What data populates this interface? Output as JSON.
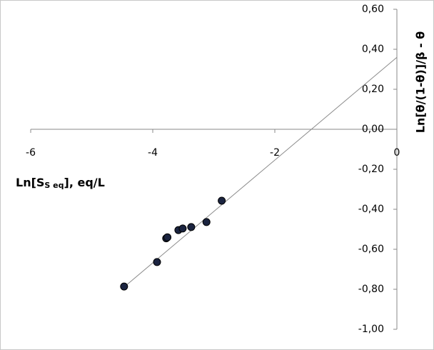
{
  "chart_data": {
    "type": "scatter",
    "x_label": {
      "main": "Ln[S",
      "sub": "S eq",
      "tail": "], eq/L"
    },
    "y_label": "Ln[θ/(1-θ)]/β - θ",
    "xlim": [
      -6,
      0
    ],
    "ylim": [
      -1,
      0.6
    ],
    "xticks": [
      -6,
      -4,
      -2,
      0
    ],
    "yticks": [
      {
        "value": 0.6,
        "label": "0,60"
      },
      {
        "value": 0.4,
        "label": "0,40"
      },
      {
        "value": 0.2,
        "label": "0,20"
      },
      {
        "value": 0,
        "label": "0,00"
      },
      {
        "value": -0.2,
        "label": "-0,20"
      },
      {
        "value": -0.4,
        "label": "-0,40"
      },
      {
        "value": -0.6,
        "label": "-0,60"
      },
      {
        "value": -0.8,
        "label": "-0,80"
      },
      {
        "value": -1,
        "label": "-1,00"
      }
    ],
    "x": [
      -4.47,
      -3.93,
      -3.78,
      -3.76,
      -3.58,
      -3.51,
      -3.37,
      -3.12,
      -2.87
    ],
    "values": [
      -0.786,
      -0.664,
      -0.545,
      -0.54,
      -0.504,
      -0.496,
      -0.489,
      -0.464,
      -0.357
    ],
    "color": "#1b2440",
    "trendline": {
      "slope": 0.257,
      "intercept": 0.36,
      "color": "#8a8a8a"
    }
  }
}
